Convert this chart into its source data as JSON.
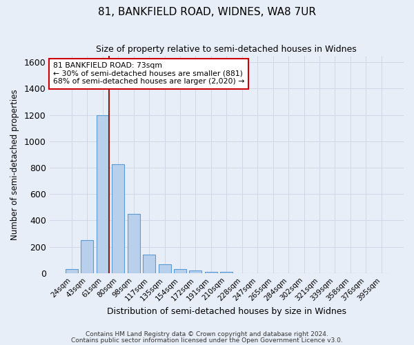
{
  "title": "81, BANKFIELD ROAD, WIDNES, WA8 7UR",
  "subtitle": "Size of property relative to semi-detached houses in Widnes",
  "xlabel": "Distribution of semi-detached houses by size in Widnes",
  "ylabel": "Number of semi-detached properties",
  "footnote1": "Contains HM Land Registry data © Crown copyright and database right 2024.",
  "footnote2": "Contains public sector information licensed under the Open Government Licence v3.0.",
  "bar_labels": [
    "24sqm",
    "43sqm",
    "61sqm",
    "80sqm",
    "98sqm",
    "117sqm",
    "135sqm",
    "154sqm",
    "172sqm",
    "191sqm",
    "210sqm",
    "228sqm",
    "247sqm",
    "265sqm",
    "284sqm",
    "302sqm",
    "321sqm",
    "339sqm",
    "358sqm",
    "376sqm",
    "395sqm"
  ],
  "bar_values": [
    30,
    250,
    1200,
    825,
    450,
    140,
    65,
    28,
    22,
    12,
    12,
    0,
    0,
    0,
    0,
    0,
    0,
    0,
    0,
    0,
    0
  ],
  "bar_color": "#b8d0eb",
  "bar_edge_color": "#5b9bd5",
  "grid_color": "#d0d8e8",
  "background_color": "#e8eef8",
  "vline_color": "#8b1a1a",
  "vline_x_index": 2.42,
  "annotation_title": "81 BANKFIELD ROAD: 73sqm",
  "annotation_line1": "← 30% of semi-detached houses are smaller (881)",
  "annotation_line2": "68% of semi-detached houses are larger (2,020) →",
  "annotation_box_color": "#ffffff",
  "annotation_box_edge": "#cc0000",
  "ylim": [
    0,
    1650
  ],
  "yticks": [
    0,
    200,
    400,
    600,
    800,
    1000,
    1200,
    1400,
    1600
  ]
}
